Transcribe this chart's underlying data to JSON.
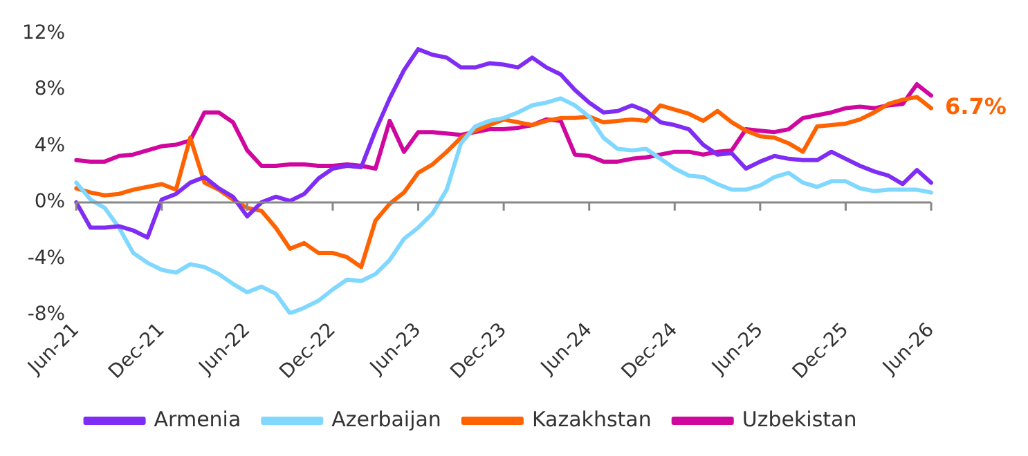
{
  "chart_data": {
    "type": "line",
    "categories": [
      "Jun-21",
      null,
      null,
      null,
      null,
      null,
      "Dec-21",
      null,
      null,
      null,
      null,
      null,
      "Jun-22",
      null,
      null,
      null,
      null,
      null,
      "Dec-22",
      null,
      null,
      null,
      null,
      null,
      "Jun-23",
      null,
      null,
      null,
      null,
      null,
      "Dec-23",
      null,
      null,
      null,
      null,
      null,
      "Jun-24",
      null,
      null,
      null,
      null,
      null,
      "Dec-24",
      null,
      null,
      null,
      null,
      null,
      "Jun-25",
      null,
      null,
      null,
      null,
      null,
      "Dec-25",
      null,
      null,
      null,
      null,
      null,
      "Jun-26"
    ],
    "series": [
      {
        "name": "Armenia",
        "color": "#7f2cf5",
        "values": [
          0,
          -1.8,
          -1.8,
          -1.7,
          -2.0,
          -2.5,
          0.2,
          0.6,
          1.4,
          1.8,
          1.0,
          0.4,
          -1.0,
          0,
          0.4,
          0.1,
          0.6,
          1.7,
          2.4,
          2.6,
          2.5,
          5.1,
          7.4,
          9.4,
          10.9,
          10.5,
          10.3,
          9.6,
          9.6,
          9.9,
          9.8,
          9.6,
          10.3,
          9.6,
          9.1,
          8.0,
          7.1,
          6.4,
          6.5,
          6.9,
          6.5,
          5.7,
          5.5,
          5.2,
          4.1,
          3.4,
          3.5,
          2.4,
          2.9,
          3.3,
          3.1,
          3.0,
          3.0,
          3.6,
          3.1,
          2.6,
          2.2,
          1.9,
          1.3,
          2.3,
          1.4
        ]
      },
      {
        "name": "Azerbaijan",
        "color": "#80d8ff",
        "values": [
          1.4,
          0.2,
          -0.4,
          -1.8,
          -3.6,
          -4.3,
          -4.8,
          -5.0,
          -4.4,
          -4.6,
          -5.1,
          -5.8,
          -6.4,
          -6.0,
          -6.5,
          -7.9,
          -7.5,
          -7.0,
          -6.2,
          -5.5,
          -5.6,
          -5.1,
          -4.1,
          -2.6,
          -1.8,
          -0.8,
          0.9,
          4.2,
          5.4,
          5.8,
          6.0,
          6.4,
          6.9,
          7.1,
          7.4,
          6.9,
          6.1,
          4.6,
          3.8,
          3.7,
          3.8,
          3.1,
          2.4,
          1.9,
          1.8,
          1.3,
          0.9,
          0.9,
          1.2,
          1.8,
          2.1,
          1.4,
          1.1,
          1.5,
          1.5,
          1.0,
          0.8,
          0.9,
          0.9,
          0.9,
          0.7
        ]
      },
      {
        "name": "Kazakhstan",
        "color": "#ff6200",
        "values": [
          1.0,
          0.7,
          0.5,
          0.6,
          0.9,
          1.1,
          1.3,
          0.9,
          4.6,
          1.4,
          0.9,
          0.2,
          -0.4,
          -0.6,
          -1.8,
          -3.3,
          -2.9,
          -3.6,
          -3.6,
          -3.9,
          -4.6,
          -1.3,
          -0.1,
          0.7,
          2.1,
          2.7,
          3.6,
          4.6,
          5.1,
          5.5,
          5.9,
          5.7,
          5.5,
          5.8,
          6.0,
          6.0,
          6.1,
          5.7,
          5.8,
          5.9,
          5.8,
          6.9,
          6.6,
          6.3,
          5.8,
          6.5,
          5.7,
          5.1,
          4.7,
          4.6,
          4.2,
          3.6,
          5.4,
          5.5,
          5.6,
          5.9,
          6.4,
          7.0,
          7.3,
          7.5,
          6.7
        ]
      },
      {
        "name": "Uzbekistan",
        "color": "#d0079e",
        "values": [
          3.0,
          2.9,
          2.9,
          3.3,
          3.4,
          3.7,
          4.0,
          4.1,
          4.4,
          6.4,
          6.4,
          5.7,
          3.7,
          2.6,
          2.6,
          2.7,
          2.7,
          2.6,
          2.6,
          2.7,
          2.6,
          2.4,
          5.8,
          3.6,
          5.0,
          5.0,
          4.9,
          4.8,
          5.0,
          5.2,
          5.2,
          5.3,
          5.5,
          5.9,
          5.8,
          3.4,
          3.3,
          2.9,
          2.9,
          3.1,
          3.2,
          3.4,
          3.6,
          3.6,
          3.4,
          3.6,
          3.7,
          5.2,
          5.1,
          5.0,
          5.2,
          6.0,
          6.2,
          6.4,
          6.7,
          6.8,
          6.7,
          6.9,
          7.0,
          8.4,
          7.6
        ]
      }
    ],
    "ylim": [
      -8,
      12
    ],
    "yticks": [
      {
        "value": -8,
        "label": "-8%"
      },
      {
        "value": -4,
        "label": "-4%"
      },
      {
        "value": 0,
        "label": "0%"
      },
      {
        "value": 4,
        "label": "4%"
      },
      {
        "value": 8,
        "label": "8%"
      },
      {
        "value": 12,
        "label": "12%"
      }
    ],
    "grid": false,
    "legend": "bottom",
    "marker": "none",
    "line_style": "solid",
    "ref_lines": [
      {
        "axis": "y",
        "value": 0,
        "color": "#888888"
      }
    ],
    "annotations": [
      {
        "text": "6.7%",
        "x": "Jun-26",
        "y": 6.7
      }
    ]
  }
}
